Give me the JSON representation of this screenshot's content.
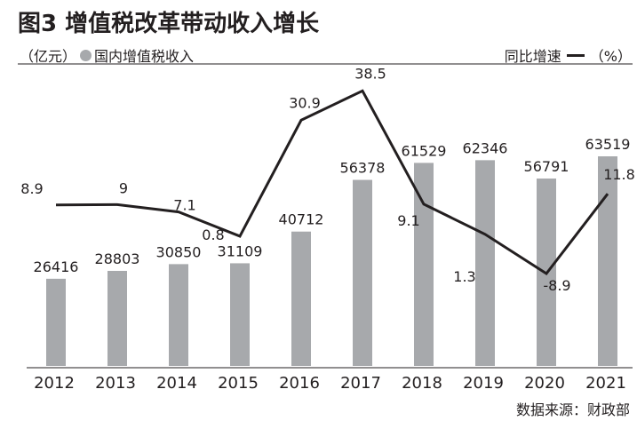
{
  "title": "图3 增值税改革带动收入增长",
  "legend": {
    "bar_unit": "（亿元）",
    "bar_label": "国内增值税收入",
    "line_label": "同比增速",
    "line_unit": "（%）"
  },
  "source": "数据来源：财政部",
  "colors": {
    "bar": "#a7a9ac",
    "line": "#231f20",
    "divider": "#231f20"
  },
  "chart_data": {
    "type": "bar",
    "categories": [
      "2012",
      "2013",
      "2014",
      "2015",
      "2016",
      "2017",
      "2018",
      "2019",
      "2020",
      "2021"
    ],
    "series": [
      {
        "name": "国内增值税收入",
        "type": "bar",
        "unit": "亿元",
        "values": [
          26416,
          28803,
          30850,
          31109,
          40712,
          56378,
          61529,
          62346,
          56791,
          63519
        ],
        "labels": [
          "26416",
          "28803",
          "30850",
          "31109",
          "40712",
          "56378",
          "61529",
          "62346",
          "56791",
          "63519"
        ]
      },
      {
        "name": "同比增速",
        "type": "line",
        "unit": "%",
        "values": [
          8.9,
          9,
          7.1,
          0.8,
          30.9,
          38.5,
          9.1,
          1.3,
          -8.9,
          11.8
        ],
        "labels": [
          "8.9",
          "9",
          "7.1",
          "0.8",
          "30.9",
          "38.5",
          "9.1",
          "1.3",
          "-8.9",
          "11.8"
        ]
      }
    ],
    "grid": false,
    "legend_position": "top"
  }
}
